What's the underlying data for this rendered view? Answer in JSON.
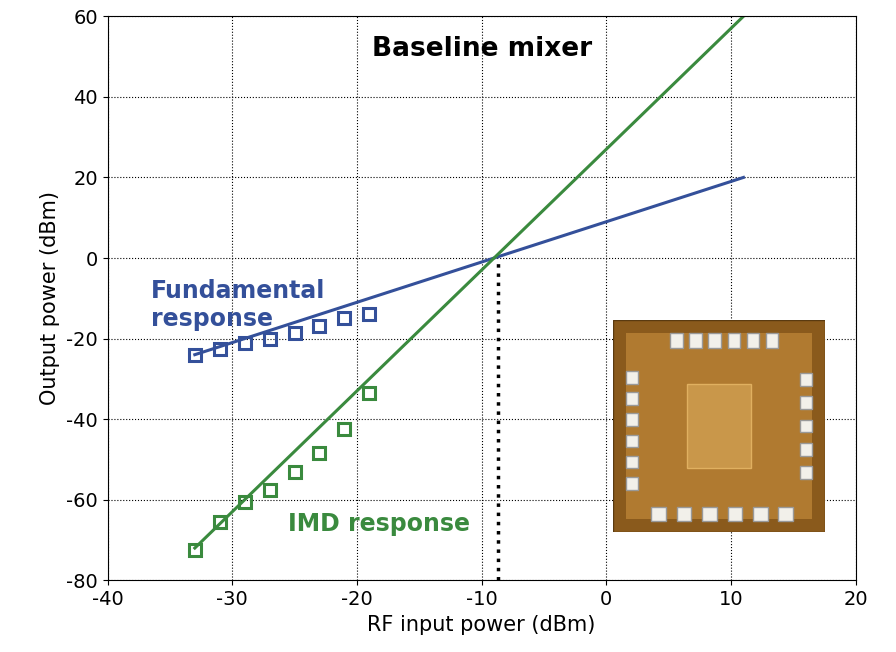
{
  "chart_data": {
    "type": "line",
    "title": "Baseline mixer",
    "x_label": "RF input power (dBm)",
    "y_label": "Output power (dBm)",
    "xlim": [
      -40,
      20
    ],
    "xticks": [
      -40,
      -30,
      -20,
      -10,
      0,
      10,
      20
    ],
    "ylim": [
      -80,
      60
    ],
    "yticks": [
      -80,
      -60,
      -40,
      -20,
      0,
      20,
      40,
      60
    ],
    "grid": true,
    "annotations": [
      "Fundamental\nresponse",
      "IMD response"
    ],
    "intercept": {
      "x": -8.7,
      "y": 0
    },
    "series": [
      {
        "color": "#34509a",
        "line_style": "solid",
        "marker": "none",
        "x": [
          -33,
          -29,
          -25,
          -21,
          -17,
          -13,
          -9,
          -5,
          -1,
          3,
          7,
          11
        ],
        "values": [
          -24,
          -20,
          -16,
          -12,
          -8,
          -4,
          0,
          4,
          8,
          12,
          16,
          20
        ]
      },
      {
        "color": "#34509a",
        "line_style": "none",
        "marker": "square",
        "x": [
          -33,
          -31,
          -29,
          -27,
          -25,
          -23,
          -21,
          -19
        ],
        "values": [
          -24,
          -22.5,
          -21,
          -20,
          -18.5,
          -17,
          -15,
          -14
        ]
      },
      {
        "color": "#3a8a3e",
        "line_style": "solid",
        "marker": "none",
        "x": [
          -33,
          -29,
          -25,
          -21,
          -17,
          -13,
          -9,
          -5,
          -1,
          3,
          7,
          11
        ],
        "values": [
          -72,
          -60,
          -48,
          -36,
          -24,
          -12,
          0,
          12,
          24,
          36,
          48,
          60
        ]
      },
      {
        "color": "#3a8a3e",
        "line_style": "none",
        "marker": "square",
        "x": [
          -33,
          -31,
          -29,
          -27,
          -25,
          -23,
          -21,
          -19
        ],
        "values": [
          -72.5,
          -65.5,
          -60.5,
          -57.5,
          -53,
          -48.5,
          -42.5,
          -33.5
        ]
      }
    ]
  }
}
